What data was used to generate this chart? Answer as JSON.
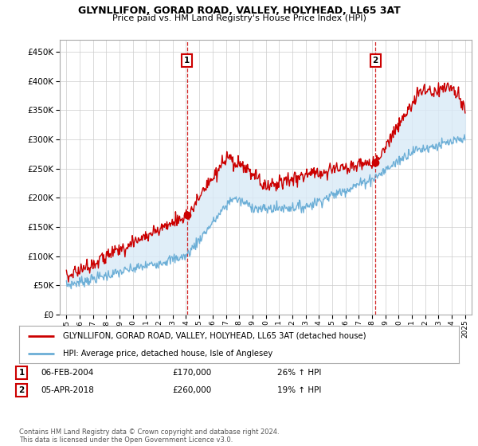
{
  "title": "GLYNLLIFON, GORAD ROAD, VALLEY, HOLYHEAD, LL65 3AT",
  "subtitle": "Price paid vs. HM Land Registry's House Price Index (HPI)",
  "ylabel_values": [
    0,
    50000,
    100000,
    150000,
    200000,
    250000,
    300000,
    350000,
    400000,
    450000
  ],
  "ylim": [
    0,
    470000
  ],
  "sale1": {
    "date": "06-FEB-2004",
    "price": 170000,
    "hpi_pct": "26% ↑ HPI",
    "x": 2004.08
  },
  "sale2": {
    "date": "05-APR-2018",
    "price": 260000,
    "hpi_pct": "19% ↑ HPI",
    "x": 2018.25
  },
  "legend_house": "GLYNLLIFON, GORAD ROAD, VALLEY, HOLYHEAD, LL65 3AT (detached house)",
  "legend_hpi": "HPI: Average price, detached house, Isle of Anglesey",
  "footer": "Contains HM Land Registry data © Crown copyright and database right 2024.\nThis data is licensed under the Open Government Licence v3.0.",
  "house_color": "#cc0000",
  "hpi_color": "#6baed6",
  "fill_color": "#d9eaf7",
  "vline_color": "#cc0000",
  "marker_box_color": "#cc0000",
  "background_color": "#ffffff",
  "grid_color": "#cccccc"
}
